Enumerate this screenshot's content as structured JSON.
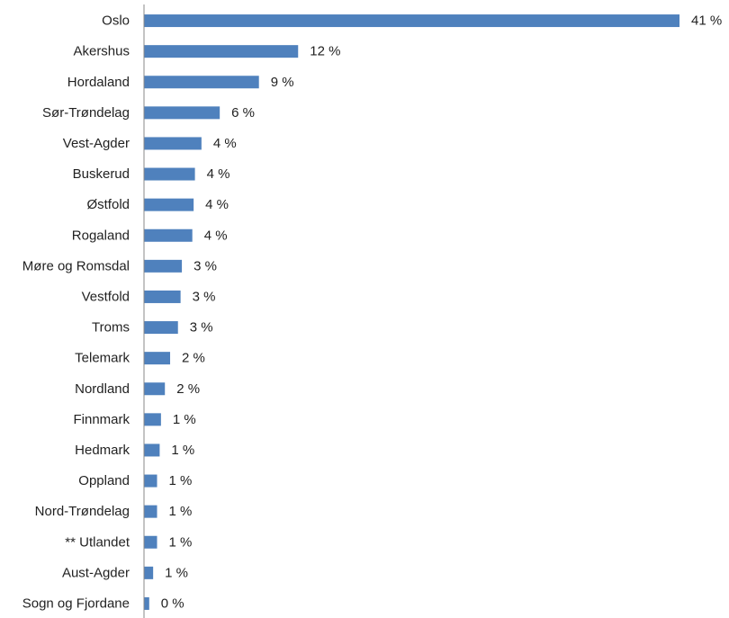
{
  "chart_data": {
    "type": "bar",
    "orientation": "horizontal",
    "categories": [
      "Oslo",
      "Akershus",
      "Hordaland",
      "Sør-Trøndelag",
      "Vest-Agder",
      "Buskerud",
      "Østfold",
      "Rogaland",
      "Møre og Romsdal",
      "Vestfold",
      "Troms",
      "Telemark",
      "Nordland",
      "Finnmark",
      "Hedmark",
      "Oppland",
      "Nord-Trøndelag",
      "** Utlandet",
      "Aust-Agder",
      "Sogn og Fjordane"
    ],
    "values": [
      41.0,
      11.8,
      8.8,
      5.8,
      4.4,
      3.9,
      3.8,
      3.7,
      2.9,
      2.8,
      2.6,
      2.0,
      1.6,
      1.3,
      1.2,
      1.0,
      1.0,
      1.0,
      0.7,
      0.4
    ],
    "data_labels": [
      "41 %",
      "12 %",
      "9 %",
      "6 %",
      "4 %",
      "4 %",
      "4 %",
      "4 %",
      "3 %",
      "3 %",
      "3 %",
      "2 %",
      "2 %",
      "1 %",
      "1 %",
      "1 %",
      "1 %",
      "1 %",
      "1 %",
      "0 %"
    ],
    "unit": "%",
    "xlim": [
      0,
      41
    ],
    "grid": false,
    "legend": "none",
    "colors": {
      "bar": "#4f81bd",
      "axis": "#888888",
      "text": "#222222"
    }
  }
}
